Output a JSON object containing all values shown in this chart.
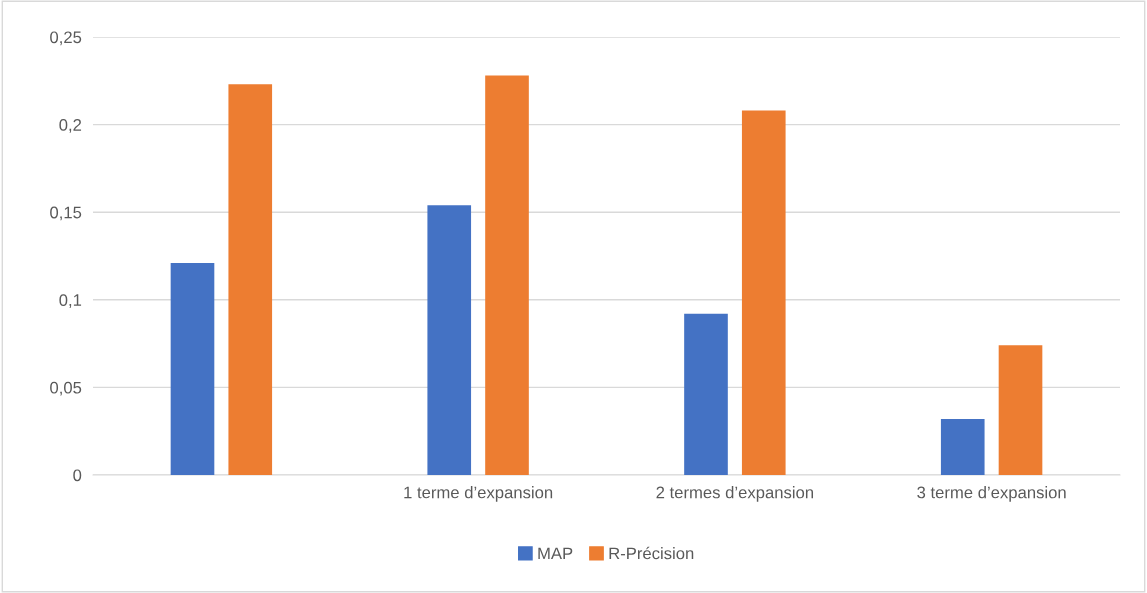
{
  "chart_data": {
    "type": "bar",
    "categories": [
      null,
      "1 terme d’expansion",
      "2 termes d’expansion",
      "3 terme d’expansion"
    ],
    "series": [
      {
        "name": "MAP",
        "color": "#4472c4",
        "values": [
          0.121,
          0.154,
          0.092,
          0.032
        ]
      },
      {
        "name": "R-Précision",
        "color": "#ed7d31",
        "values": [
          0.223,
          0.228,
          0.208,
          0.074
        ]
      }
    ],
    "ylim": [
      0,
      0.25
    ],
    "yticks": [
      {
        "value": 0,
        "label": "0"
      },
      {
        "value": 0.05,
        "label": "0,05"
      },
      {
        "value": 0.1,
        "label": "0,1"
      },
      {
        "value": 0.15,
        "label": "0,15"
      },
      {
        "value": 0.2,
        "label": "0,2"
      },
      {
        "value": 0.25,
        "label": "0,25"
      }
    ],
    "grid": "y",
    "legend": "bottom"
  }
}
